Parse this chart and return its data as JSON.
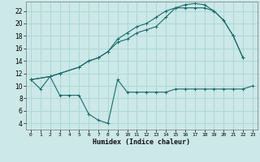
{
  "xlabel": "Humidex (Indice chaleur)",
  "bg_color": "#cce8e8",
  "grid_color": "#b0d8d8",
  "line_color": "#1a6b6b",
  "xlim": [
    -0.5,
    23.5
  ],
  "ylim": [
    3,
    23.5
  ],
  "x_ticks": [
    0,
    1,
    2,
    3,
    4,
    5,
    6,
    7,
    8,
    9,
    10,
    11,
    12,
    13,
    14,
    15,
    16,
    17,
    18,
    19,
    20,
    21,
    22,
    23
  ],
  "y_ticks": [
    4,
    6,
    8,
    10,
    12,
    14,
    16,
    18,
    20,
    22
  ],
  "line1_x": [
    0,
    1,
    2,
    3,
    4,
    5,
    6,
    7,
    8,
    9,
    10,
    11,
    12,
    13,
    14,
    15,
    16,
    17,
    18,
    19,
    20,
    21,
    22,
    23
  ],
  "line1_y": [
    11,
    9.5,
    11.5,
    8.5,
    8.5,
    8.5,
    5.5,
    4.5,
    4,
    11,
    9,
    9,
    9,
    9,
    9,
    9.5,
    9.5,
    9.5,
    9.5,
    9.5,
    9.5,
    9.5,
    9.5,
    10
  ],
  "line2_x": [
    0,
    2,
    3,
    5,
    6,
    7,
    8,
    9,
    10,
    11,
    12,
    13,
    14,
    15,
    16,
    17,
    18,
    19,
    20,
    21,
    22
  ],
  "line2_y": [
    11,
    11.5,
    12,
    13,
    14,
    14.5,
    15.5,
    17.5,
    18.5,
    19.5,
    20,
    21,
    22,
    22.5,
    23,
    23.2,
    23,
    22,
    20.5,
    18,
    14.5
  ],
  "line3_x": [
    0,
    2,
    3,
    5,
    6,
    7,
    8,
    9,
    10,
    11,
    12,
    13,
    14,
    15,
    16,
    17,
    18,
    19,
    20,
    21,
    22
  ],
  "line3_y": [
    11,
    11.5,
    12,
    13,
    14,
    14.5,
    15.5,
    17,
    17.5,
    18.5,
    19,
    19.5,
    21,
    22.5,
    22.5,
    22.5,
    22.5,
    22,
    20.5,
    18,
    14.5
  ]
}
